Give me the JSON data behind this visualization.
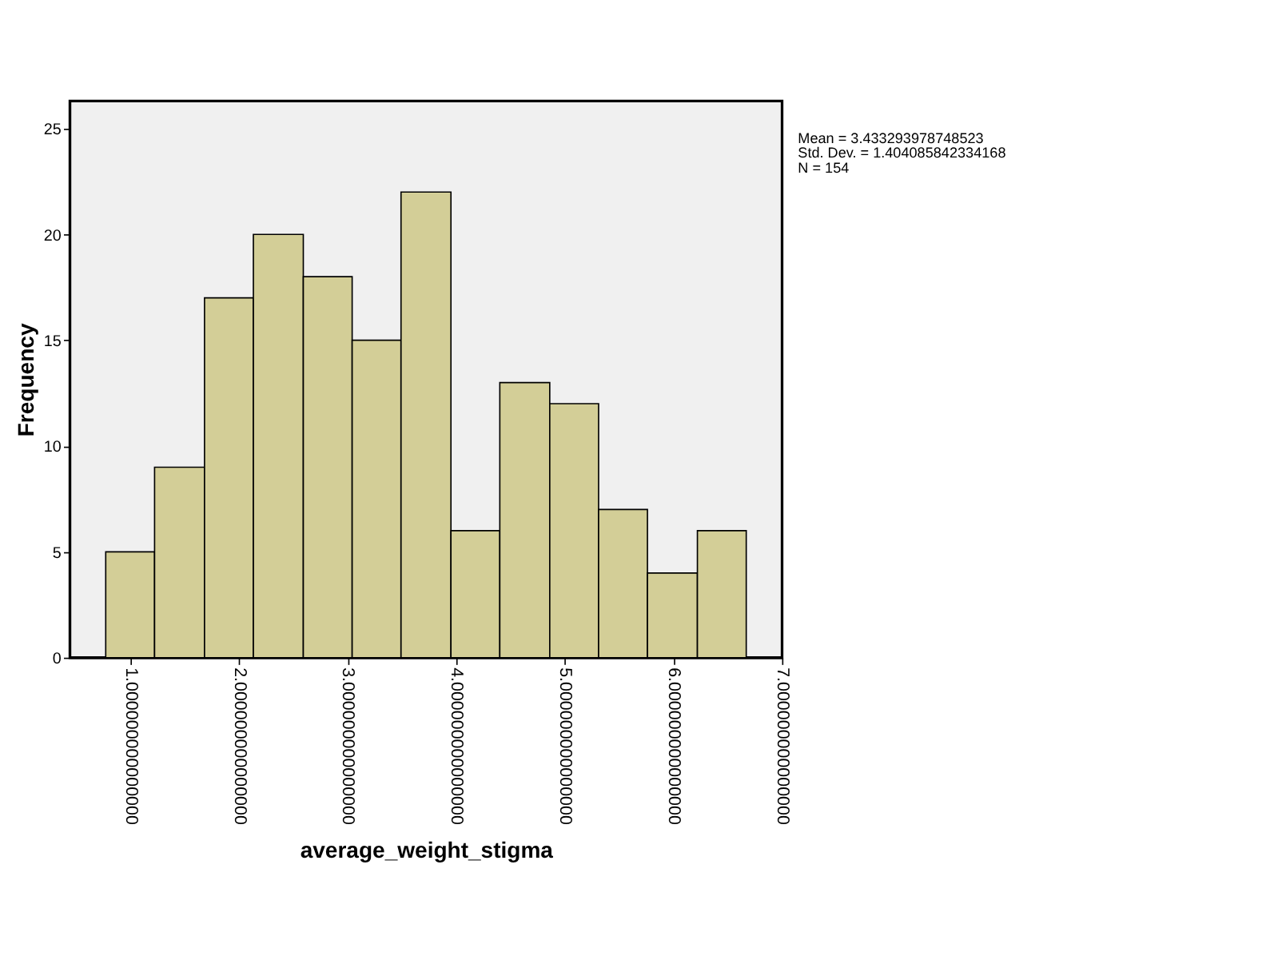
{
  "chart_data": {
    "type": "histogram",
    "xlabel": "average_weight_stigma",
    "ylabel": "Frequency",
    "bins": [
      0.77,
      1.22,
      1.68,
      2.13,
      2.59,
      3.04,
      3.49,
      3.95,
      4.4,
      4.86,
      5.31,
      5.76,
      6.22,
      6.67
    ],
    "values": [
      5,
      9,
      17,
      20,
      18,
      15,
      22,
      6,
      13,
      12,
      7,
      4,
      6
    ],
    "color": "#d3ce97",
    "xlim": [
      0.44,
      7.0
    ],
    "xticks": [
      {
        "value": 1,
        "label": "1.000000000000000"
      },
      {
        "value": 2,
        "label": "2.000000000000000"
      },
      {
        "value": 3,
        "label": "3.000000000000000"
      },
      {
        "value": 4,
        "label": "4.000000000000000"
      },
      {
        "value": 5,
        "label": "5.000000000000000"
      },
      {
        "value": 6,
        "label": "6.000000000000000"
      },
      {
        "value": 7,
        "label": "7.000000000000000"
      }
    ],
    "ylim": [
      0,
      26.3
    ],
    "yticks": [
      0,
      5,
      10,
      15,
      20,
      25
    ],
    "grid": false,
    "annotations": [
      "Mean = 3.433293978748523",
      "Std. Dev. =  1.404085842334168",
      "N = 154"
    ]
  }
}
